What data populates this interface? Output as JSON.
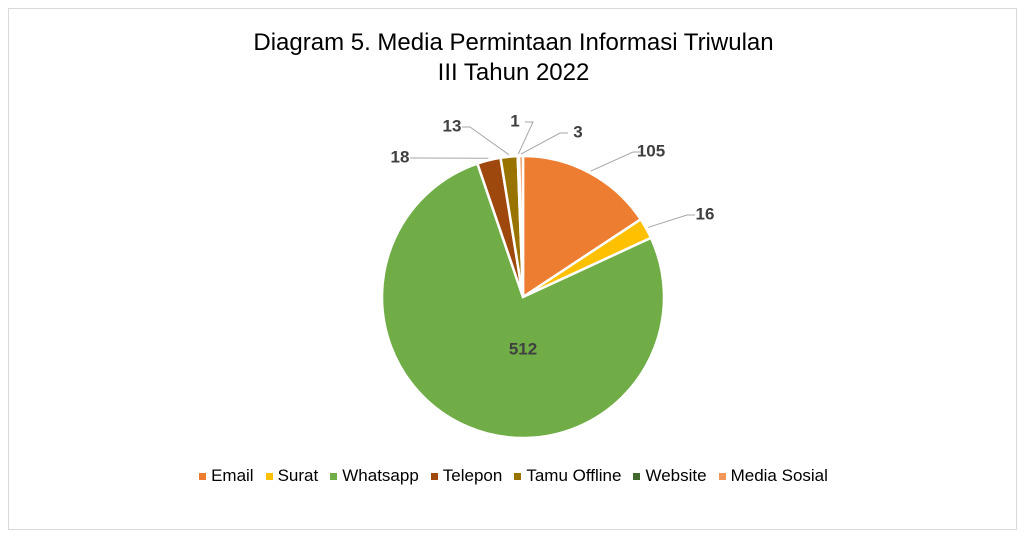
{
  "chart_data": {
    "type": "pie",
    "title": "Diagram 5. Media Permintaan Informasi Triwulan III Tahun 2022",
    "categories": [
      "Email",
      "Surat",
      "Whatsapp",
      "Telepon",
      "Tamu Offline",
      "Website",
      "Media Sosial"
    ],
    "values": [
      105,
      16,
      512,
      18,
      13,
      1,
      3
    ],
    "colors": [
      "#ed7d31",
      "#ffc000",
      "#70ad47",
      "#9e480e",
      "#997300",
      "#43682b",
      "#f1975a"
    ],
    "legend": "bottom"
  }
}
